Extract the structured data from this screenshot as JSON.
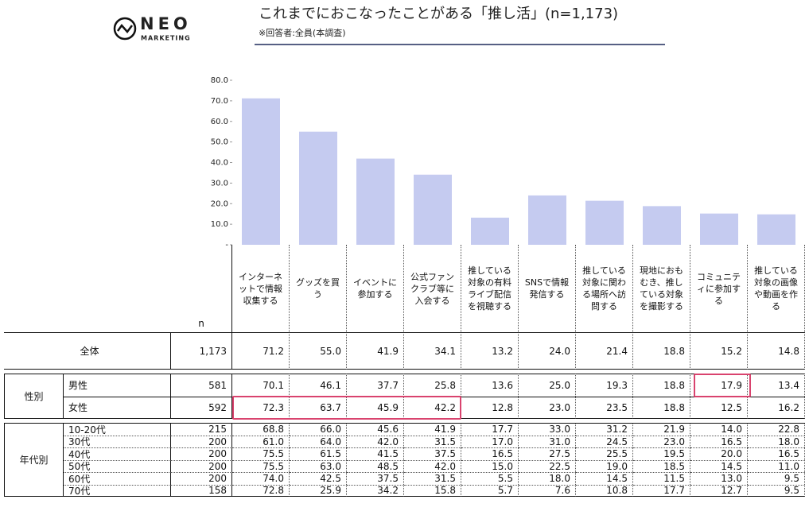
{
  "logo": {
    "name": "NEO",
    "sub": "MARKETING"
  },
  "header": {
    "title": "これまでにおこなったことがある「推し活」(n=1,173)",
    "note": "※回答者:全員(本調査)"
  },
  "chart_data": {
    "type": "bar",
    "categories": [
      "インターネットで情報収集する",
      "グッズを買う",
      "イベントに参加する",
      "公式ファンクラブ等に入会する",
      "推している対象の有料ライブ配信を視聴する",
      "SNSで情報発信する",
      "推している対象に関わる場所へ訪問する",
      "現地におもむき、推している対象を撮影する",
      "コミュニティに参加する",
      "推している対象の画像や動画を作る"
    ],
    "values": [
      71.2,
      55.0,
      41.9,
      34.1,
      13.2,
      24.0,
      21.4,
      18.8,
      15.2,
      14.8
    ],
    "color": "#c5cbf0",
    "ylim": [
      0,
      80
    ],
    "yticks": [
      {
        "value": 0,
        "label": "-"
      },
      {
        "value": 10,
        "label": "10.0"
      },
      {
        "value": 20,
        "label": "20.0"
      },
      {
        "value": 30,
        "label": "30.0"
      },
      {
        "value": 40,
        "label": "40.0"
      },
      {
        "value": 50,
        "label": "50.0"
      },
      {
        "value": 60,
        "label": "60.0"
      },
      {
        "value": 70,
        "label": "70.0"
      },
      {
        "value": 80,
        "label": "80.0"
      }
    ]
  },
  "table": {
    "n_header": "n",
    "total": {
      "label": "全体",
      "n": "1,173",
      "values": [
        "71.2",
        "55.0",
        "41.9",
        "34.1",
        "13.2",
        "24.0",
        "21.4",
        "18.8",
        "15.2",
        "14.8"
      ]
    },
    "groups": [
      {
        "label": "性別",
        "rows": [
          {
            "label": "男性",
            "n": "581",
            "values": [
              "70.1",
              "46.1",
              "37.7",
              "25.8",
              "13.6",
              "25.0",
              "19.3",
              "18.8",
              "17.9",
              "13.4"
            ]
          },
          {
            "label": "女性",
            "n": "592",
            "values": [
              "72.3",
              "63.7",
              "45.9",
              "42.2",
              "12.8",
              "23.0",
              "23.5",
              "18.8",
              "12.5",
              "16.2"
            ]
          }
        ]
      },
      {
        "label": "年代別",
        "rows": [
          {
            "label": "10-20代",
            "n": "215",
            "values": [
              "68.8",
              "66.0",
              "45.6",
              "41.9",
              "17.7",
              "33.0",
              "31.2",
              "21.9",
              "14.0",
              "22.8"
            ]
          },
          {
            "label": "30代",
            "n": "200",
            "values": [
              "61.0",
              "64.0",
              "42.0",
              "31.5",
              "17.0",
              "31.0",
              "24.5",
              "23.0",
              "16.5",
              "18.0"
            ]
          },
          {
            "label": "40代",
            "n": "200",
            "values": [
              "75.5",
              "61.5",
              "41.5",
              "37.5",
              "16.5",
              "27.5",
              "25.5",
              "19.5",
              "20.0",
              "16.5"
            ]
          },
          {
            "label": "50代",
            "n": "200",
            "values": [
              "75.5",
              "63.0",
              "48.5",
              "42.0",
              "15.0",
              "22.5",
              "19.0",
              "18.5",
              "14.5",
              "11.0"
            ]
          },
          {
            "label": "60代",
            "n": "200",
            "values": [
              "74.0",
              "42.5",
              "37.5",
              "31.5",
              "5.5",
              "18.0",
              "14.5",
              "11.5",
              "13.0",
              "9.5"
            ]
          },
          {
            "label": "70代",
            "n": "158",
            "values": [
              "72.8",
              "25.9",
              "34.2",
              "15.8",
              "5.7",
              "7.6",
              "10.8",
              "17.7",
              "12.7",
              "9.5"
            ]
          }
        ]
      }
    ]
  }
}
